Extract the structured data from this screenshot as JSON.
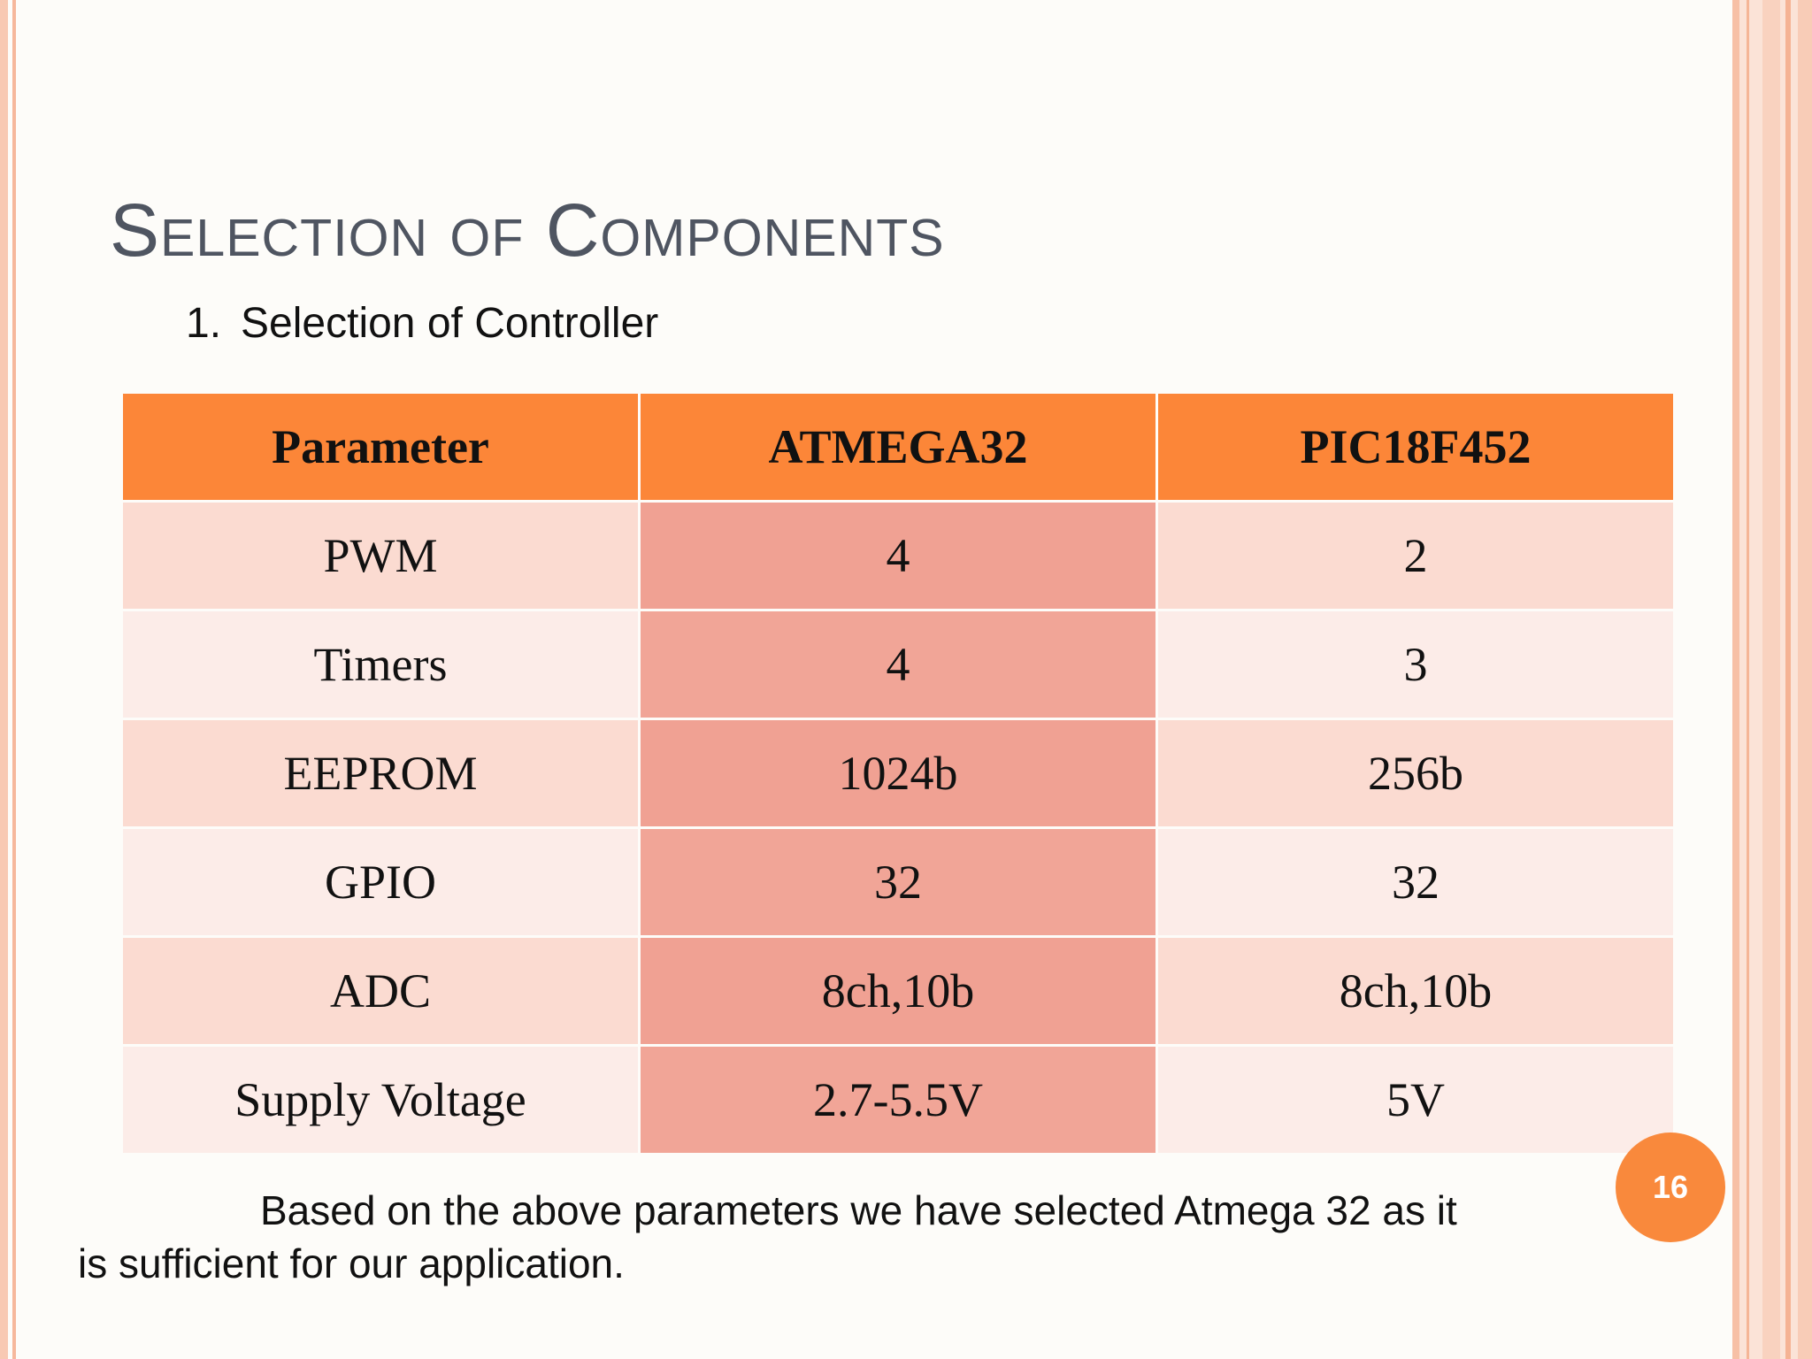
{
  "slide": {
    "title": "Selection of Components",
    "subtitle_number": "1.",
    "subtitle_text": "Selection of Controller",
    "table": {
      "headers": [
        "Parameter",
        "ATMEGA32",
        "PIC18F452"
      ],
      "rows": [
        [
          "PWM",
          "4",
          "2"
        ],
        [
          "Timers",
          "4",
          "3"
        ],
        [
          "EEPROM",
          "1024b",
          "256b"
        ],
        [
          "GPIO",
          "32",
          "32"
        ],
        [
          "ADC",
          "8ch,10b",
          "8ch,10b"
        ],
        [
          "Supply Voltage",
          "2.7-5.5V",
          "5V"
        ]
      ]
    },
    "conclusion_line1": "Based on the above parameters we have selected Atmega 32 as it",
    "conclusion_line2": "is sufficient for our application.",
    "page_number": "16"
  },
  "colors": {
    "header": "#fc8638",
    "atmega_column": "#f0a193",
    "row_light": "#fcece8",
    "row_tint": "#fbdbd1",
    "badge": "#f9893c"
  }
}
